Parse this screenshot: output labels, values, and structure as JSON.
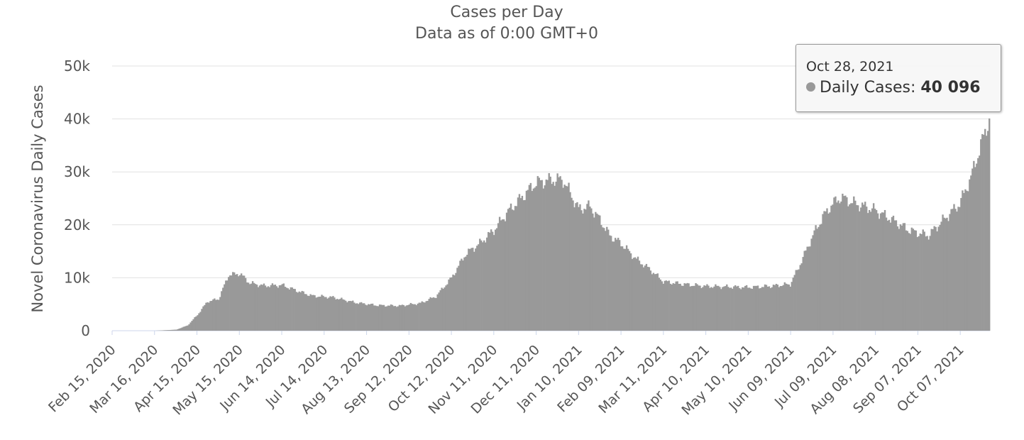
{
  "chart_data": {
    "type": "bar",
    "title": "Cases per Day",
    "subtitle": "Data as of 0:00 GMT+0",
    "ylabel": "Novel Coronavirus Daily Cases",
    "xlabel": "",
    "ylim": [
      0,
      50000
    ],
    "y_ticks": [
      "0",
      "10k",
      "20k",
      "30k",
      "40k",
      "50k"
    ],
    "x_ticks": [
      "Feb 15, 2020",
      "Mar 16, 2020",
      "Apr 15, 2020",
      "May 15, 2020",
      "Jun 14, 2020",
      "Jul 14, 2020",
      "Aug 13, 2020",
      "Sep 12, 2020",
      "Oct 12, 2020",
      "Nov 11, 2020",
      "Dec 11, 2020",
      "Jan 10, 2021",
      "Feb 09, 2021",
      "Mar 11, 2021",
      "Apr 10, 2021",
      "May 10, 2021",
      "Jun 09, 2021",
      "Jul 09, 2021",
      "Aug 08, 2021",
      "Sep 07, 2021",
      "Oct 07, 2021"
    ],
    "x_range": [
      "Feb 15, 2020",
      "Oct 28, 2021"
    ],
    "grid": true,
    "color": "#999999",
    "series": [
      {
        "name": "Daily Cases",
        "points": [
          [
            "2020-02-15",
            0
          ],
          [
            "2020-03-16",
            0
          ],
          [
            "2020-03-31",
            200
          ],
          [
            "2020-04-08",
            1000
          ],
          [
            "2020-04-15",
            3000
          ],
          [
            "2020-04-22",
            5500
          ],
          [
            "2020-04-30",
            6000
          ],
          [
            "2020-05-07",
            10500
          ],
          [
            "2020-05-15",
            10800
          ],
          [
            "2020-05-22",
            9000
          ],
          [
            "2020-06-01",
            8500
          ],
          [
            "2020-06-14",
            8600
          ],
          [
            "2020-06-25",
            7500
          ],
          [
            "2020-07-05",
            6600
          ],
          [
            "2020-07-20",
            6300
          ],
          [
            "2020-08-05",
            5300
          ],
          [
            "2020-08-20",
            4800
          ],
          [
            "2020-09-05",
            4700
          ],
          [
            "2020-09-20",
            5200
          ],
          [
            "2020-10-01",
            6500
          ],
          [
            "2020-10-12",
            10000
          ],
          [
            "2020-10-22",
            14500
          ],
          [
            "2020-11-01",
            16500
          ],
          [
            "2020-11-11",
            19000
          ],
          [
            "2020-11-21",
            22500
          ],
          [
            "2020-11-30",
            25000
          ],
          [
            "2020-12-11",
            28000
          ],
          [
            "2020-12-22",
            28500
          ],
          [
            "2020-12-30",
            28500
          ],
          [
            "2021-01-10",
            23000
          ],
          [
            "2021-01-18",
            23500
          ],
          [
            "2021-01-25",
            21000
          ],
          [
            "2021-02-01",
            18000
          ],
          [
            "2021-02-09",
            16500
          ],
          [
            "2021-02-20",
            13500
          ],
          [
            "2021-03-02",
            11500
          ],
          [
            "2021-03-11",
            9300
          ],
          [
            "2021-03-25",
            8800
          ],
          [
            "2021-04-10",
            8400
          ],
          [
            "2021-04-25",
            8300
          ],
          [
            "2021-05-10",
            8200
          ],
          [
            "2021-05-25",
            8400
          ],
          [
            "2021-06-09",
            8800
          ],
          [
            "2021-06-15",
            12000
          ],
          [
            "2021-06-25",
            18000
          ],
          [
            "2021-07-02",
            21500
          ],
          [
            "2021-07-09",
            24000
          ],
          [
            "2021-07-15",
            25200
          ],
          [
            "2021-07-25",
            24000
          ],
          [
            "2021-08-08",
            22800
          ],
          [
            "2021-08-20",
            21000
          ],
          [
            "2021-09-01",
            19000
          ],
          [
            "2021-09-07",
            18500
          ],
          [
            "2021-09-15",
            18000
          ],
          [
            "2021-09-22",
            20000
          ],
          [
            "2021-10-07",
            24000
          ],
          [
            "2021-10-15",
            29000
          ],
          [
            "2021-10-22",
            35000
          ],
          [
            "2021-10-28",
            40096
          ]
        ]
      }
    ]
  },
  "tooltip": {
    "date": "Oct 28, 2021",
    "series_label": "Daily Cases:",
    "value": "40 096",
    "dot_color": "#999999"
  }
}
